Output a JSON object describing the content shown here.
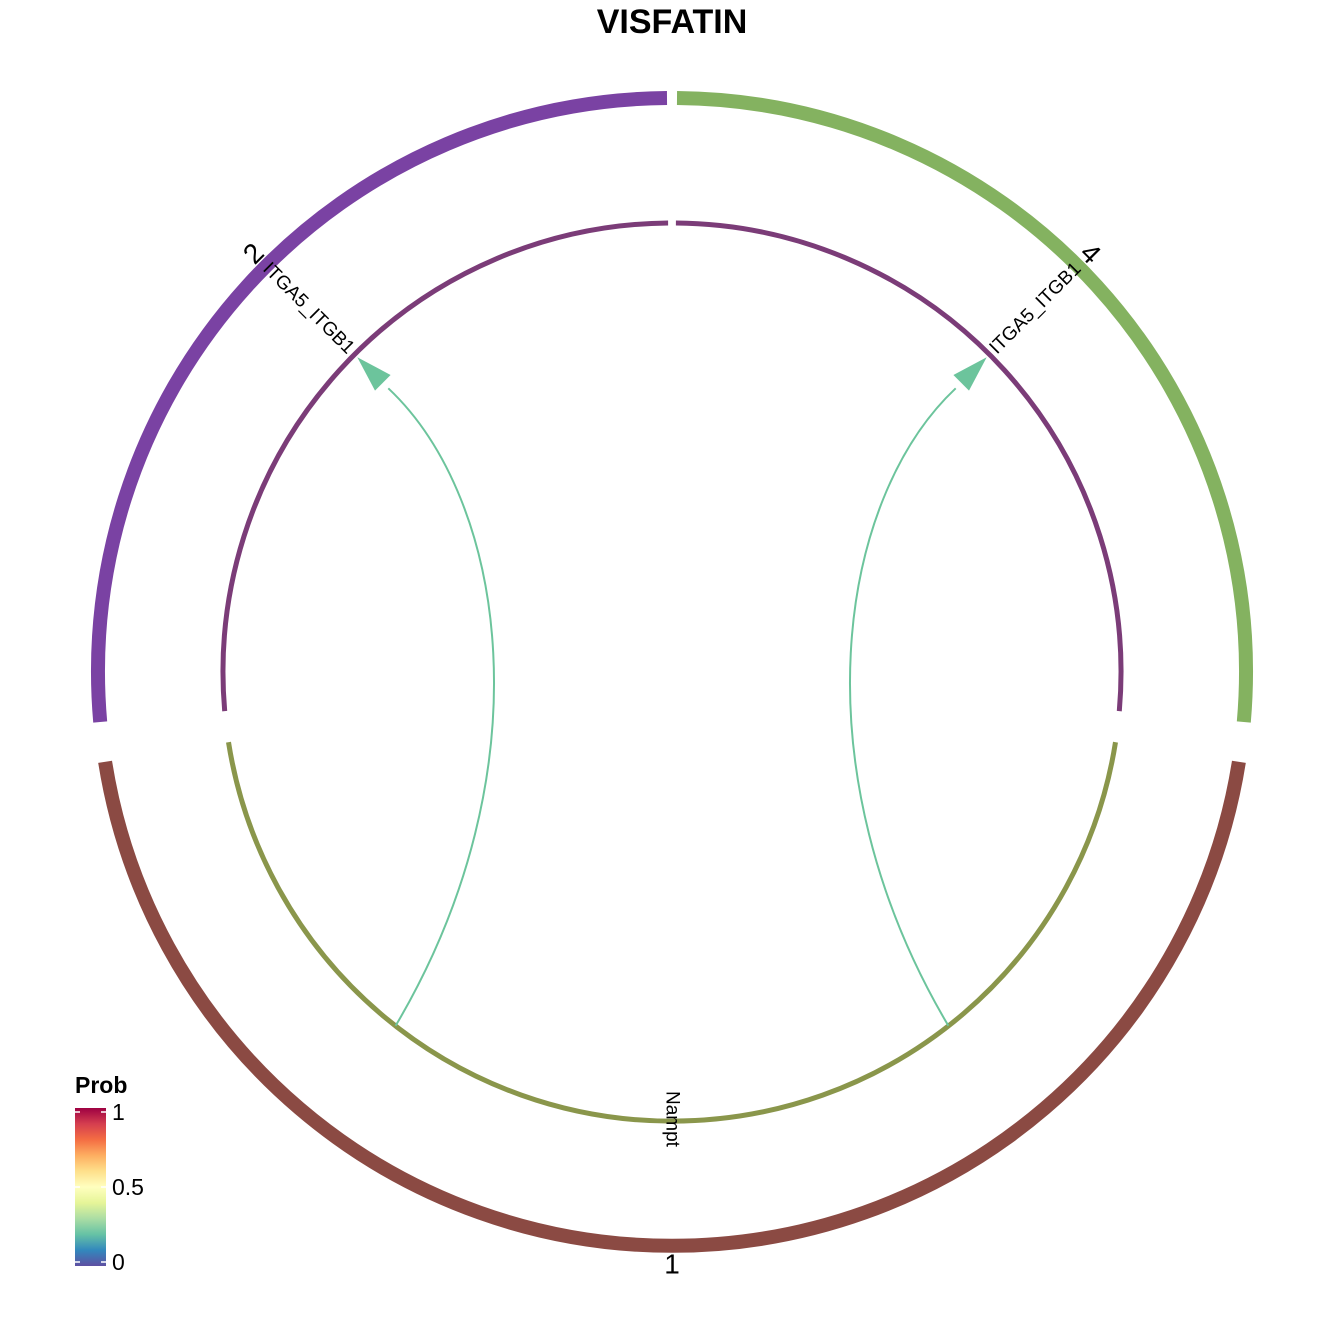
{
  "title": "VISFATIN",
  "sectors": [
    {
      "id": "2",
      "label": "2",
      "color": "#7a42a3"
    },
    {
      "id": "4",
      "label": "4",
      "color": "#84b260"
    },
    {
      "id": "1",
      "label": "1",
      "color": "#8b4a43"
    }
  ],
  "tracks": [
    {
      "sector": "2",
      "gene": "ITGA5_ITGB1",
      "color": "#7b3c78"
    },
    {
      "sector": "4",
      "gene": "ITGA5_ITGB1",
      "color": "#7b3c78"
    },
    {
      "sector": "1",
      "gene": "Nampt",
      "color": "#8a964b"
    }
  ],
  "chart_data": {
    "type": "chord",
    "title": "VISFATIN",
    "links": [
      {
        "source": "1",
        "ligand": "Nampt",
        "target": "2",
        "receptor": "ITGA5_ITGB1",
        "color": "#6cc49c"
      },
      {
        "source": "1",
        "ligand": "Nampt",
        "target": "4",
        "receptor": "ITGA5_ITGB1",
        "color": "#6cc49c"
      }
    ],
    "legend": {
      "title": "Prob",
      "ticks": [
        "1",
        "0.5",
        "0"
      ],
      "colors": [
        "#9e0142",
        "#d53e4f",
        "#f46d43",
        "#fdae61",
        "#fee08b",
        "#ffffbf",
        "#e6f598",
        "#abdda4",
        "#66c2a5",
        "#3288bd",
        "#5e4fa2"
      ]
    }
  }
}
